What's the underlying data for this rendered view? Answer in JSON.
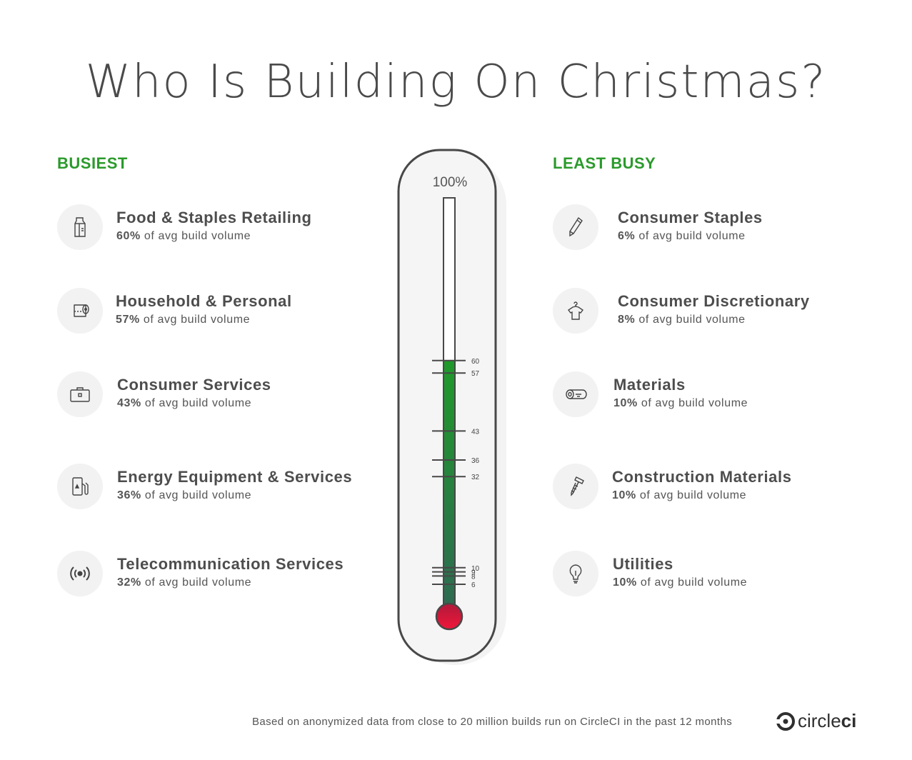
{
  "title": "Who Is Building On Christmas?",
  "busiest_heading": "BUSIEST",
  "least_heading": "LEAST BUSY",
  "suffix": " of avg build volume",
  "busiest": [
    {
      "name": "Food & Staples Retailing",
      "pct": "60%",
      "icon": "milk-carton-icon"
    },
    {
      "name": "Household & Personal",
      "pct": "57%",
      "icon": "toilet-paper-icon"
    },
    {
      "name": "Consumer Services",
      "pct": "43%",
      "icon": "briefcase-icon"
    },
    {
      "name": "Energy Equipment & Services",
      "pct": "36%",
      "icon": "fuel-pump-icon"
    },
    {
      "name": "Telecommunication Services",
      "pct": "32%",
      "icon": "signal-broadcast-icon"
    }
  ],
  "least": [
    {
      "name": "Consumer Staples",
      "pct": "6%",
      "icon": "pencil-icon"
    },
    {
      "name": "Consumer Discretionary",
      "pct": "8%",
      "icon": "shirt-hanger-icon"
    },
    {
      "name": "Materials",
      "pct": "10%",
      "icon": "log-icon"
    },
    {
      "name": "Construction Materials",
      "pct": "10%",
      "icon": "screw-icon"
    },
    {
      "name": "Utilities",
      "pct": "10%",
      "icon": "lightbulb-icon"
    }
  ],
  "chart_data": {
    "type": "bar",
    "top_label": "100%",
    "ylim": [
      0,
      100
    ],
    "level": 60,
    "ticks": [
      60,
      57,
      43,
      36,
      32,
      10,
      9,
      8,
      6
    ],
    "categories": [
      "Food & Staples Retailing",
      "Household & Personal",
      "Consumer Services",
      "Energy Equipment & Services",
      "Telecommunication Services",
      "Consumer Staples",
      "Consumer Discretionary",
      "Materials",
      "Construction Materials",
      "Utilities"
    ],
    "values": [
      60,
      57,
      43,
      36,
      32,
      6,
      8,
      10,
      10,
      10
    ]
  },
  "colors": {
    "heading": "#2b9a2b",
    "mercury_top": "#1f9a2a",
    "mercury_bottom": "#2e6a52",
    "bulb": "#e0163a"
  },
  "footer": "Based on anonymized data from close to 20 million builds run on CircleCI in the past 12 months",
  "logo": {
    "text_a": "circle",
    "text_b": "ci"
  }
}
